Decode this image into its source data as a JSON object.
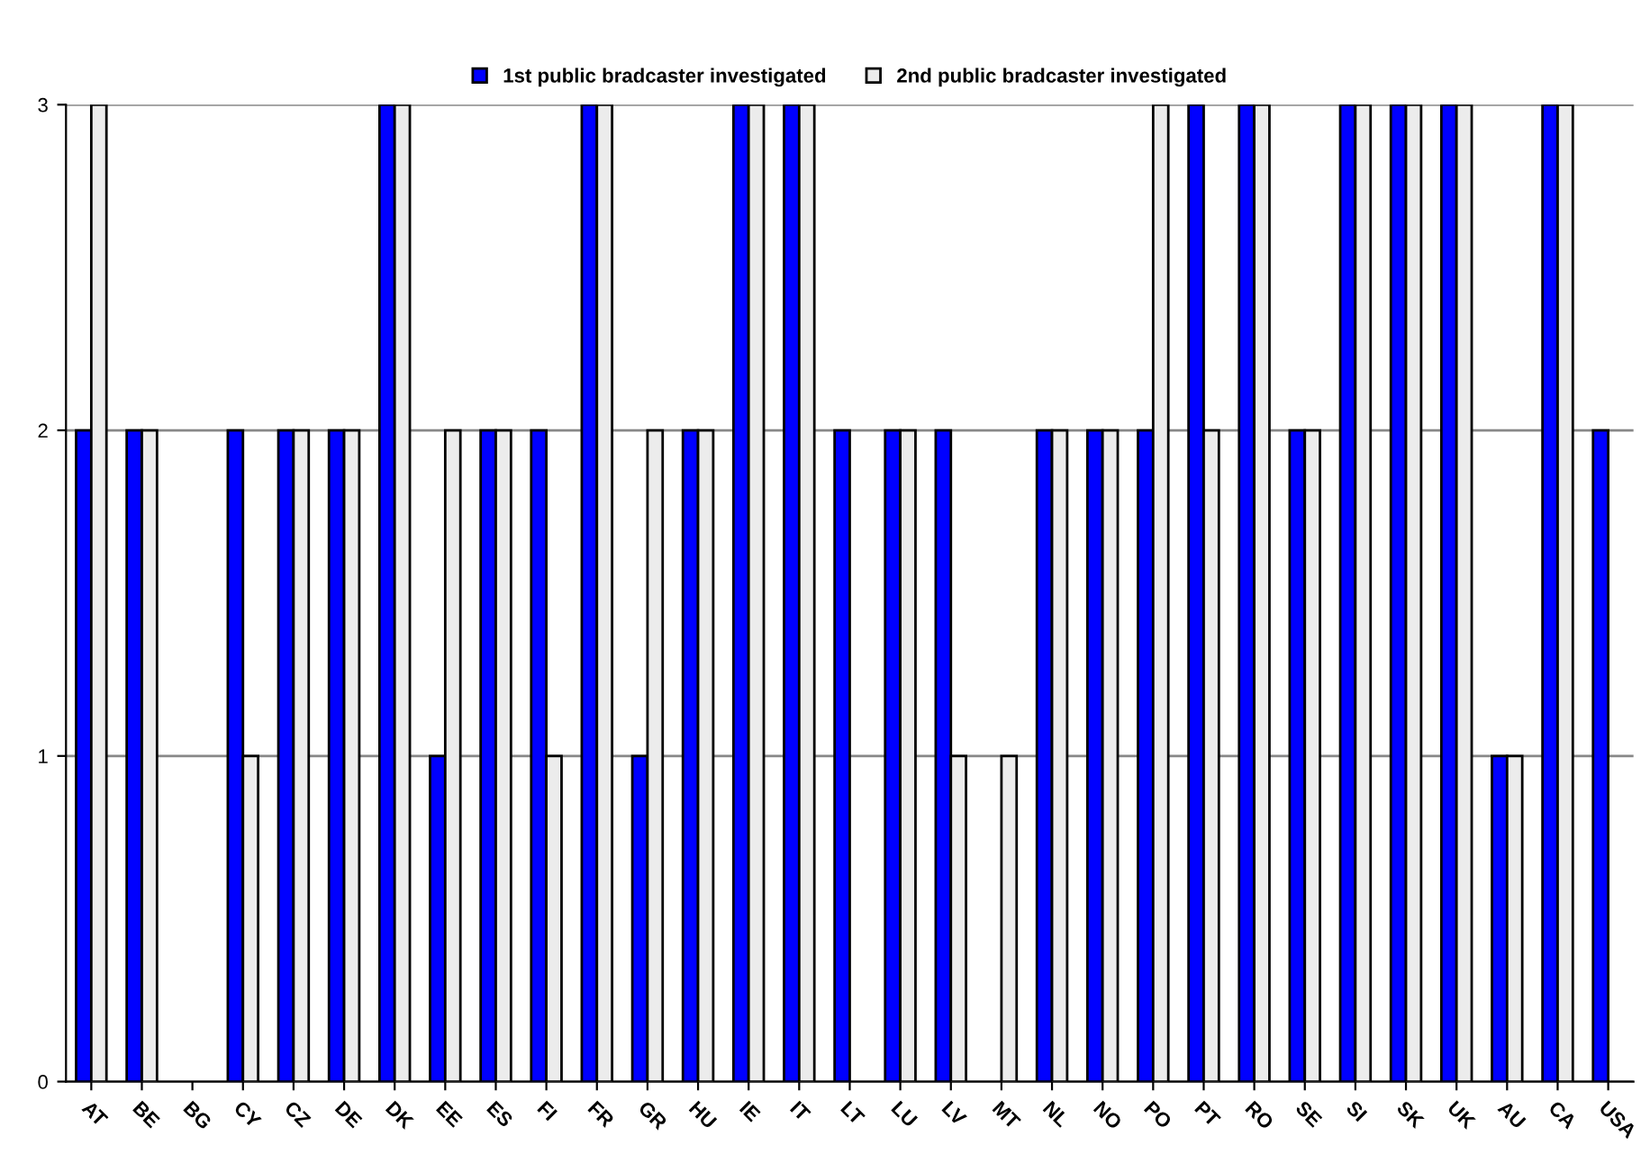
{
  "chart_data": {
    "type": "bar",
    "categories": [
      "AT",
      "BE",
      "BG",
      "CY",
      "CZ",
      "DE",
      "DK",
      "EE",
      "ES",
      "FI",
      "FR",
      "GR",
      "HU",
      "IE",
      "IT",
      "LT",
      "LU",
      "LV",
      "MT",
      "NL",
      "NO",
      "PO",
      "PT",
      "RO",
      "SE",
      "SI",
      "SK",
      "UK",
      "AU",
      "CA",
      "USA"
    ],
    "series": [
      {
        "name": "1st public bradcaster investigated",
        "color": "#0000ff",
        "values": [
          2,
          2,
          0,
          2,
          2,
          2,
          3,
          1,
          2,
          2,
          3,
          1,
          2,
          3,
          3,
          2,
          2,
          2,
          0,
          2,
          2,
          2,
          3,
          3,
          2,
          3,
          3,
          3,
          1,
          3,
          2
        ]
      },
      {
        "name": "2nd public bradcaster investigated",
        "color": "#ececec",
        "values": [
          3,
          2,
          0,
          1,
          2,
          2,
          3,
          2,
          2,
          1,
          3,
          2,
          2,
          3,
          3,
          0,
          2,
          1,
          1,
          2,
          2,
          3,
          2,
          3,
          2,
          3,
          3,
          3,
          1,
          3,
          0
        ]
      }
    ],
    "ylim": [
      0,
      3
    ],
    "yticks": [
      0,
      1,
      2,
      3
    ],
    "grid": "y",
    "legend": "top"
  }
}
